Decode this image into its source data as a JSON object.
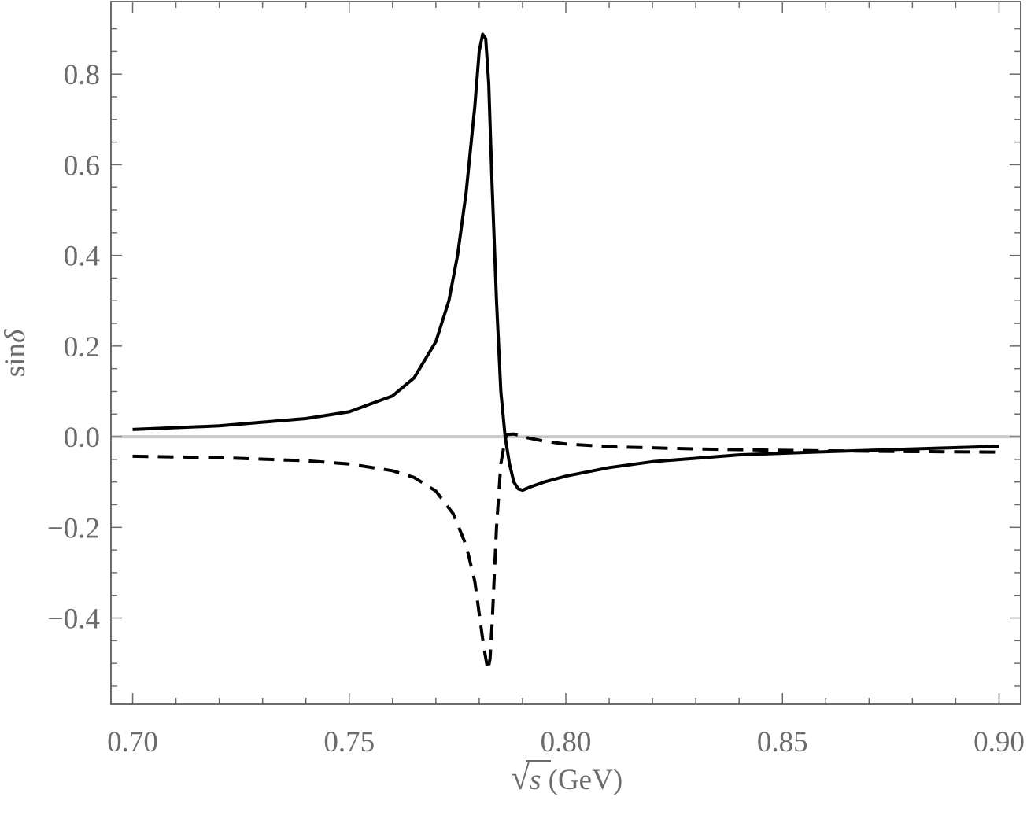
{
  "chart_data": {
    "type": "line",
    "title": "",
    "xlabel": {
      "radical": "√",
      "var": "s",
      "unit": " (GeV)"
    },
    "ylabel": {
      "fn": "sin",
      "var": "δ"
    },
    "xlim": [
      0.695,
      0.905
    ],
    "ylim": [
      -0.59,
      0.96
    ],
    "x_ticks": [
      0.7,
      0.75,
      0.8,
      0.85,
      0.9
    ],
    "x_tick_labels": [
      "0.70",
      "0.75",
      "0.80",
      "0.85",
      "0.90"
    ],
    "y_ticks": [
      -0.4,
      -0.2,
      0.0,
      0.2,
      0.4,
      0.6,
      0.8
    ],
    "y_tick_labels": [
      "−0.4",
      "−0.2",
      "0.0",
      "0.2",
      "0.4",
      "0.6",
      "0.8"
    ],
    "grid": false,
    "legend": "none",
    "zero_line_color": "#c8c8c8",
    "series": [
      {
        "style": "solid",
        "color": "#000000",
        "points": [
          [
            0.7,
            0.016
          ],
          [
            0.72,
            0.024
          ],
          [
            0.74,
            0.04
          ],
          [
            0.75,
            0.055
          ],
          [
            0.76,
            0.09
          ],
          [
            0.765,
            0.13
          ],
          [
            0.77,
            0.21
          ],
          [
            0.773,
            0.3
          ],
          [
            0.775,
            0.4
          ],
          [
            0.777,
            0.54
          ],
          [
            0.779,
            0.73
          ],
          [
            0.78,
            0.85
          ],
          [
            0.7808,
            0.888
          ],
          [
            0.7815,
            0.878
          ],
          [
            0.7822,
            0.78
          ],
          [
            0.783,
            0.55
          ],
          [
            0.784,
            0.3
          ],
          [
            0.785,
            0.1
          ],
          [
            0.786,
            0.0
          ],
          [
            0.787,
            -0.06
          ],
          [
            0.788,
            -0.1
          ],
          [
            0.789,
            -0.115
          ],
          [
            0.79,
            -0.118
          ],
          [
            0.792,
            -0.11
          ],
          [
            0.795,
            -0.1
          ],
          [
            0.8,
            -0.087
          ],
          [
            0.81,
            -0.068
          ],
          [
            0.82,
            -0.055
          ],
          [
            0.84,
            -0.04
          ],
          [
            0.86,
            -0.033
          ],
          [
            0.88,
            -0.027
          ],
          [
            0.9,
            -0.021
          ]
        ]
      },
      {
        "style": "dashed",
        "color": "#000000",
        "points": [
          [
            0.7,
            -0.043
          ],
          [
            0.72,
            -0.046
          ],
          [
            0.74,
            -0.053
          ],
          [
            0.75,
            -0.06
          ],
          [
            0.76,
            -0.075
          ],
          [
            0.765,
            -0.09
          ],
          [
            0.77,
            -0.12
          ],
          [
            0.774,
            -0.17
          ],
          [
            0.777,
            -0.24
          ],
          [
            0.779,
            -0.32
          ],
          [
            0.78,
            -0.39
          ],
          [
            0.781,
            -0.46
          ],
          [
            0.782,
            -0.515
          ],
          [
            0.7825,
            -0.49
          ],
          [
            0.783,
            -0.41
          ],
          [
            0.784,
            -0.2
          ],
          [
            0.785,
            -0.06
          ],
          [
            0.786,
            -0.005
          ],
          [
            0.7865,
            0.005
          ],
          [
            0.788,
            0.006
          ],
          [
            0.79,
            0.0
          ],
          [
            0.795,
            -0.01
          ],
          [
            0.8,
            -0.016
          ],
          [
            0.81,
            -0.022
          ],
          [
            0.83,
            -0.027
          ],
          [
            0.85,
            -0.03
          ],
          [
            0.87,
            -0.032
          ],
          [
            0.9,
            -0.034
          ]
        ]
      }
    ]
  }
}
